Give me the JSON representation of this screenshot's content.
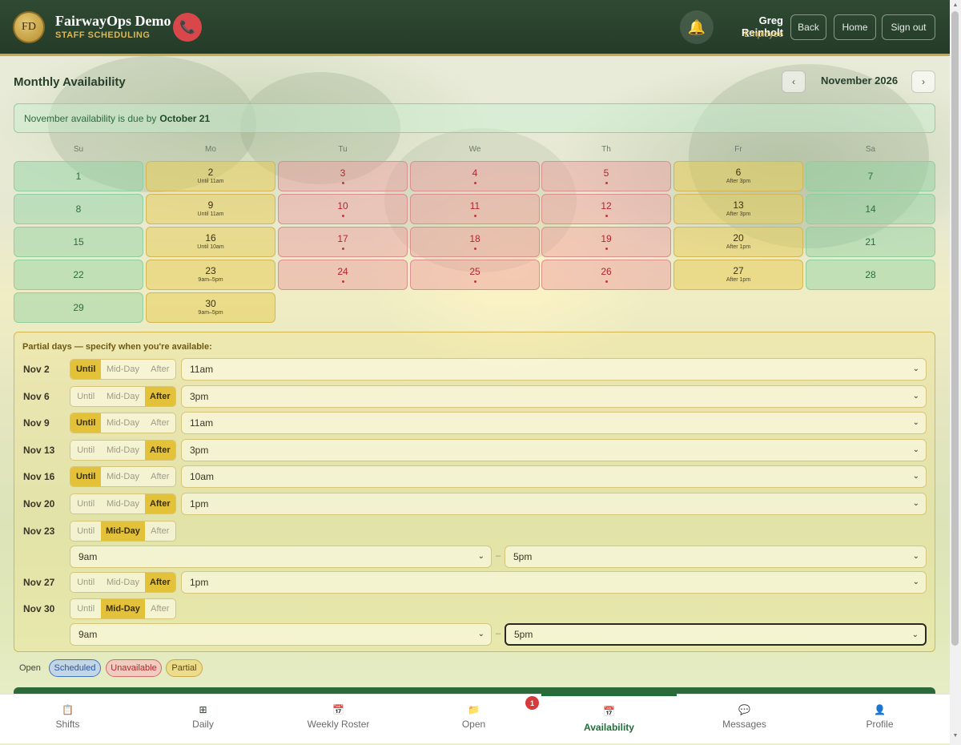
{
  "header": {
    "logo_text": "FD",
    "app_title": "FairwayOps Demo",
    "app_subtitle": "STAFF SCHEDULING",
    "user_name": "Greg Reinholt",
    "user_role": "Employee",
    "back_label": "Back",
    "home_label": "Home",
    "signout_label": "Sign out",
    "icons": {
      "call": "phone-icon",
      "bell": "bell-icon"
    }
  },
  "page": {
    "title": "Monthly Availability",
    "month": "November 2026",
    "prev_glyph": "‹",
    "next_glyph": "›",
    "due_text": "November availability is due by",
    "due_date": "October 21"
  },
  "chart_data": {
    "type": "table",
    "title": "Monthly Availability",
    "month": "November 2026",
    "weekdays": [
      "Su",
      "Mo",
      "Tu",
      "We",
      "Th",
      "Fr",
      "Sa"
    ],
    "first_weekday_index": 0,
    "status_colors": {
      "open": "#8fcf9f",
      "partial": "#d4b752",
      "unavailable": "#dc8f8f"
    },
    "days": [
      {
        "day": 1,
        "status": "open",
        "note": ""
      },
      {
        "day": 2,
        "status": "partial",
        "note": "Until 11am"
      },
      {
        "day": 3,
        "status": "unavailable",
        "note": ""
      },
      {
        "day": 4,
        "status": "unavailable",
        "note": ""
      },
      {
        "day": 5,
        "status": "unavailable",
        "note": ""
      },
      {
        "day": 6,
        "status": "partial",
        "note": "After 3pm"
      },
      {
        "day": 7,
        "status": "open",
        "note": ""
      },
      {
        "day": 8,
        "status": "open",
        "note": ""
      },
      {
        "day": 9,
        "status": "partial",
        "note": "Until 11am"
      },
      {
        "day": 10,
        "status": "unavailable",
        "note": ""
      },
      {
        "day": 11,
        "status": "unavailable",
        "note": ""
      },
      {
        "day": 12,
        "status": "unavailable",
        "note": ""
      },
      {
        "day": 13,
        "status": "partial",
        "note": "After 3pm"
      },
      {
        "day": 14,
        "status": "open",
        "note": ""
      },
      {
        "day": 15,
        "status": "open",
        "note": ""
      },
      {
        "day": 16,
        "status": "partial",
        "note": "Until 10am"
      },
      {
        "day": 17,
        "status": "unavailable",
        "note": ""
      },
      {
        "day": 18,
        "status": "unavailable",
        "note": ""
      },
      {
        "day": 19,
        "status": "unavailable",
        "note": ""
      },
      {
        "day": 20,
        "status": "partial",
        "note": "After 1pm"
      },
      {
        "day": 21,
        "status": "open",
        "note": ""
      },
      {
        "day": 22,
        "status": "open",
        "note": ""
      },
      {
        "day": 23,
        "status": "partial",
        "note": "9am–5pm"
      },
      {
        "day": 24,
        "status": "unavailable",
        "note": ""
      },
      {
        "day": 25,
        "status": "unavailable",
        "note": ""
      },
      {
        "day": 26,
        "status": "unavailable",
        "note": ""
      },
      {
        "day": 27,
        "status": "partial",
        "note": "After 1pm"
      },
      {
        "day": 28,
        "status": "open",
        "note": ""
      },
      {
        "day": 29,
        "status": "open",
        "note": ""
      },
      {
        "day": 30,
        "status": "partial",
        "note": "9am–5pm"
      }
    ]
  },
  "partial": {
    "title": "Partial days — specify when you're available:",
    "mode_labels": [
      "Until",
      "Mid-Day",
      "After"
    ],
    "rows": [
      {
        "label": "Nov 2",
        "mode": "Until",
        "time": "11am"
      },
      {
        "label": "Nov 6",
        "mode": "After",
        "time": "3pm"
      },
      {
        "label": "Nov 9",
        "mode": "Until",
        "time": "11am"
      },
      {
        "label": "Nov 13",
        "mode": "After",
        "time": "3pm"
      },
      {
        "label": "Nov 16",
        "mode": "Until",
        "time": "10am"
      },
      {
        "label": "Nov 20",
        "mode": "After",
        "time": "1pm"
      },
      {
        "label": "Nov 23",
        "mode": "Mid-Day",
        "from": "9am",
        "to": "5pm"
      },
      {
        "label": "Nov 27",
        "mode": "After",
        "time": "1pm"
      },
      {
        "label": "Nov 30",
        "mode": "Mid-Day",
        "from": "9am",
        "to": "5pm"
      }
    ]
  },
  "legend": {
    "open": "Open",
    "scheduled": "Scheduled",
    "unavailable": "Unavailable",
    "partial": "Partial"
  },
  "bottom_nav": {
    "items": [
      {
        "label": "Shifts",
        "icon": "clipboard-icon",
        "glyph": "📋",
        "active": false
      },
      {
        "label": "Daily",
        "icon": "grid-icon",
        "glyph": "⊞",
        "active": false
      },
      {
        "label": "Weekly Roster",
        "icon": "calendar-icon",
        "glyph": "📅",
        "active": false
      },
      {
        "label": "Open",
        "icon": "folder-icon",
        "glyph": "📁",
        "active": false
      },
      {
        "label": "Availability",
        "icon": "calendar-icon",
        "glyph": "📅",
        "active": true
      },
      {
        "label": "Messages",
        "icon": "chat-icon",
        "glyph": "💬",
        "active": false
      },
      {
        "label": "Profile",
        "icon": "person-icon",
        "glyph": "👤",
        "active": false
      }
    ],
    "open_badge": "1"
  }
}
